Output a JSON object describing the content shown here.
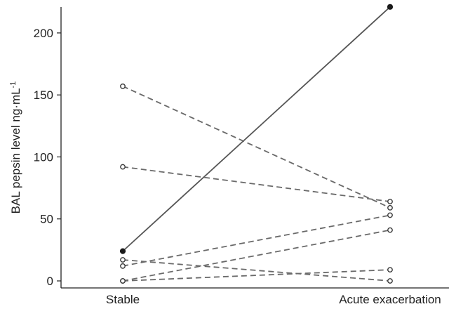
{
  "chart_data": {
    "type": "line",
    "title": "",
    "xlabel": "",
    "ylabel": "BAL pepsin level ng·mL",
    "ylabel_superscript": "-1",
    "categories": [
      "Stable",
      "Acute exacerbation"
    ],
    "ylim": [
      0,
      230
    ],
    "yticks": [
      0,
      50,
      100,
      150,
      200
    ],
    "grid": false,
    "legend": "none",
    "series": [
      {
        "style": "solid",
        "marker": "filled",
        "values": [
          24,
          221
        ]
      },
      {
        "style": "dashed",
        "marker": "open",
        "values": [
          157,
          59
        ]
      },
      {
        "style": "dashed",
        "marker": "open",
        "values": [
          92,
          64
        ]
      },
      {
        "style": "dashed",
        "marker": "open",
        "values": [
          17,
          0
        ]
      },
      {
        "style": "dashed",
        "marker": "open",
        "values": [
          12,
          53
        ]
      },
      {
        "style": "dashed",
        "marker": "open",
        "values": [
          0,
          41
        ]
      },
      {
        "style": "dashed",
        "marker": "open",
        "values": [
          0,
          9
        ]
      }
    ],
    "colors": {
      "solid_line": "#555555",
      "dashed_line": "#6a6a6a",
      "marker": "#3a3a3a",
      "axis": "#222222"
    }
  }
}
